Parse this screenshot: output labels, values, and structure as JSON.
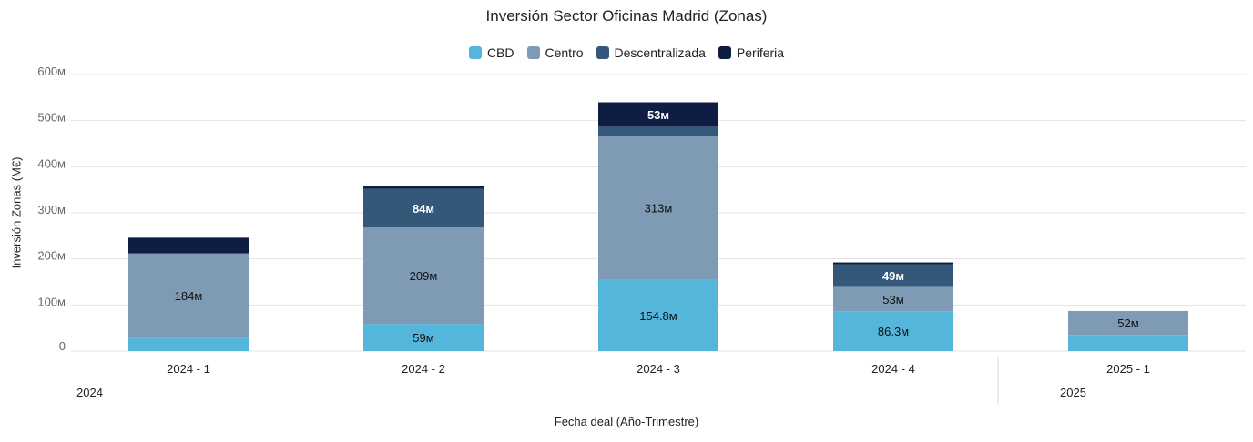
{
  "chart_data": {
    "type": "bar",
    "stacked": true,
    "title": "Inversión Sector Oficinas Madrid (Zonas)",
    "xlabel": "Fecha deal (Año-Trimestre)",
    "ylabel": "Inversión Zonas (M€)",
    "ylim": [
      0,
      600
    ],
    "yticks": [
      "0",
      "100м",
      "200м",
      "300м",
      "400м",
      "500м",
      "600м"
    ],
    "grid": true,
    "legend_position": "top-center",
    "categories": [
      "2024 - 1",
      "2024 - 2",
      "2024 - 3",
      "2024 - 4",
      "2025 - 1"
    ],
    "groups": [
      {
        "label": "2024",
        "categories": [
          "2024 - 1",
          "2024 - 2",
          "2024 - 3",
          "2024 - 4"
        ]
      },
      {
        "label": "2025",
        "categories": [
          "2025 - 1"
        ]
      }
    ],
    "series": [
      {
        "name": "CBD",
        "color": "#55b6db",
        "values": [
          28,
          59,
          154.8,
          86.3,
          35
        ],
        "labels": [
          "",
          "59м",
          "154.8м",
          "86.3м",
          ""
        ]
      },
      {
        "name": "Centro",
        "color": "#7e9ab4",
        "values": [
          184,
          209,
          313,
          53,
          52
        ],
        "labels": [
          "184м",
          "209м",
          "313м",
          "53м",
          "52м"
        ]
      },
      {
        "name": "Descentralizada",
        "color": "#34587a",
        "values": [
          0,
          84,
          19,
          49,
          0
        ],
        "labels": [
          "",
          "84м",
          "",
          "49м",
          ""
        ]
      },
      {
        "name": "Periferia",
        "color": "#0e1d41",
        "values": [
          34,
          7,
          53,
          4,
          0
        ],
        "labels": [
          "",
          "",
          "53м",
          "",
          ""
        ]
      }
    ]
  }
}
